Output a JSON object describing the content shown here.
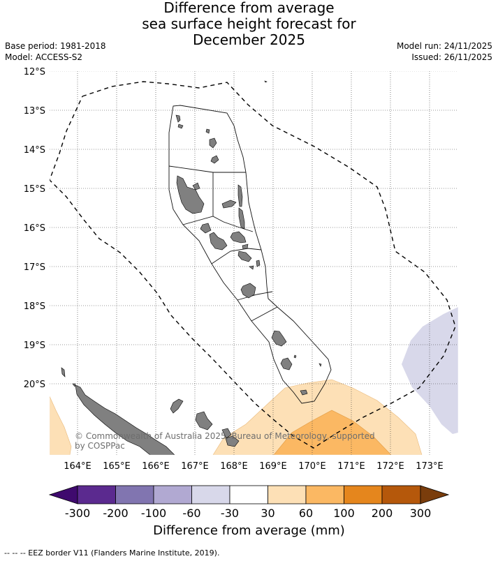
{
  "title": {
    "line1": "Difference from average",
    "line2": "sea surface height forecast for",
    "line3": "December 2025"
  },
  "meta": {
    "base_period": "Base period: 1981-2018",
    "model": "Model: ACCESS-S2",
    "model_run": "Model run: 24/11/2025",
    "issued": "Issued: 26/11/2025"
  },
  "map": {
    "lat_labels": [
      "12°S",
      "13°S",
      "14°S",
      "15°S",
      "16°S",
      "17°S",
      "18°S",
      "19°S",
      "20°S"
    ],
    "lon_labels": [
      "164°E",
      "165°E",
      "166°E",
      "167°E",
      "168°E",
      "169°E",
      "170°E",
      "171°E",
      "172°E",
      "173°E"
    ],
    "copyright": "© Commonwealth of Australia 2025, Bureau of Meteorology, supported",
    "copyright_line2": "by COSPPac",
    "colors": {
      "land": "#808080",
      "anomaly_30_60": "#fde0b6",
      "anomaly_60_100": "#fbb863",
      "anomaly_neg30_neg60": "#d8d8ea"
    }
  },
  "colorbar": {
    "ticks": [
      "-300",
      "-200",
      "-100",
      "-60",
      "-30",
      "30",
      "60",
      "100",
      "200",
      "300"
    ],
    "colors": [
      "#3f0a6e",
      "#5b2a8f",
      "#8175b0",
      "#b1a9d2",
      "#d8d8ea",
      "#ffffff",
      "#fde0b6",
      "#fbb863",
      "#e5861d",
      "#b5580b",
      "#7a3d0c"
    ],
    "label": "Difference from average (mm)"
  },
  "footnote": "--  --  -- EEZ border V11 (Flanders Marine Institute, 2019)."
}
